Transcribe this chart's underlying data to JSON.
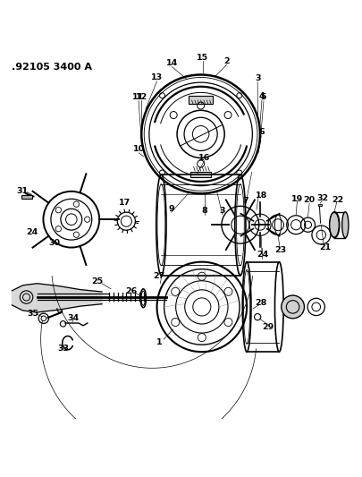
{
  "title": ".92105 3400 A",
  "bg_color": "#ffffff",
  "fig_width": 4.05,
  "fig_height": 5.33,
  "dpi": 100
}
